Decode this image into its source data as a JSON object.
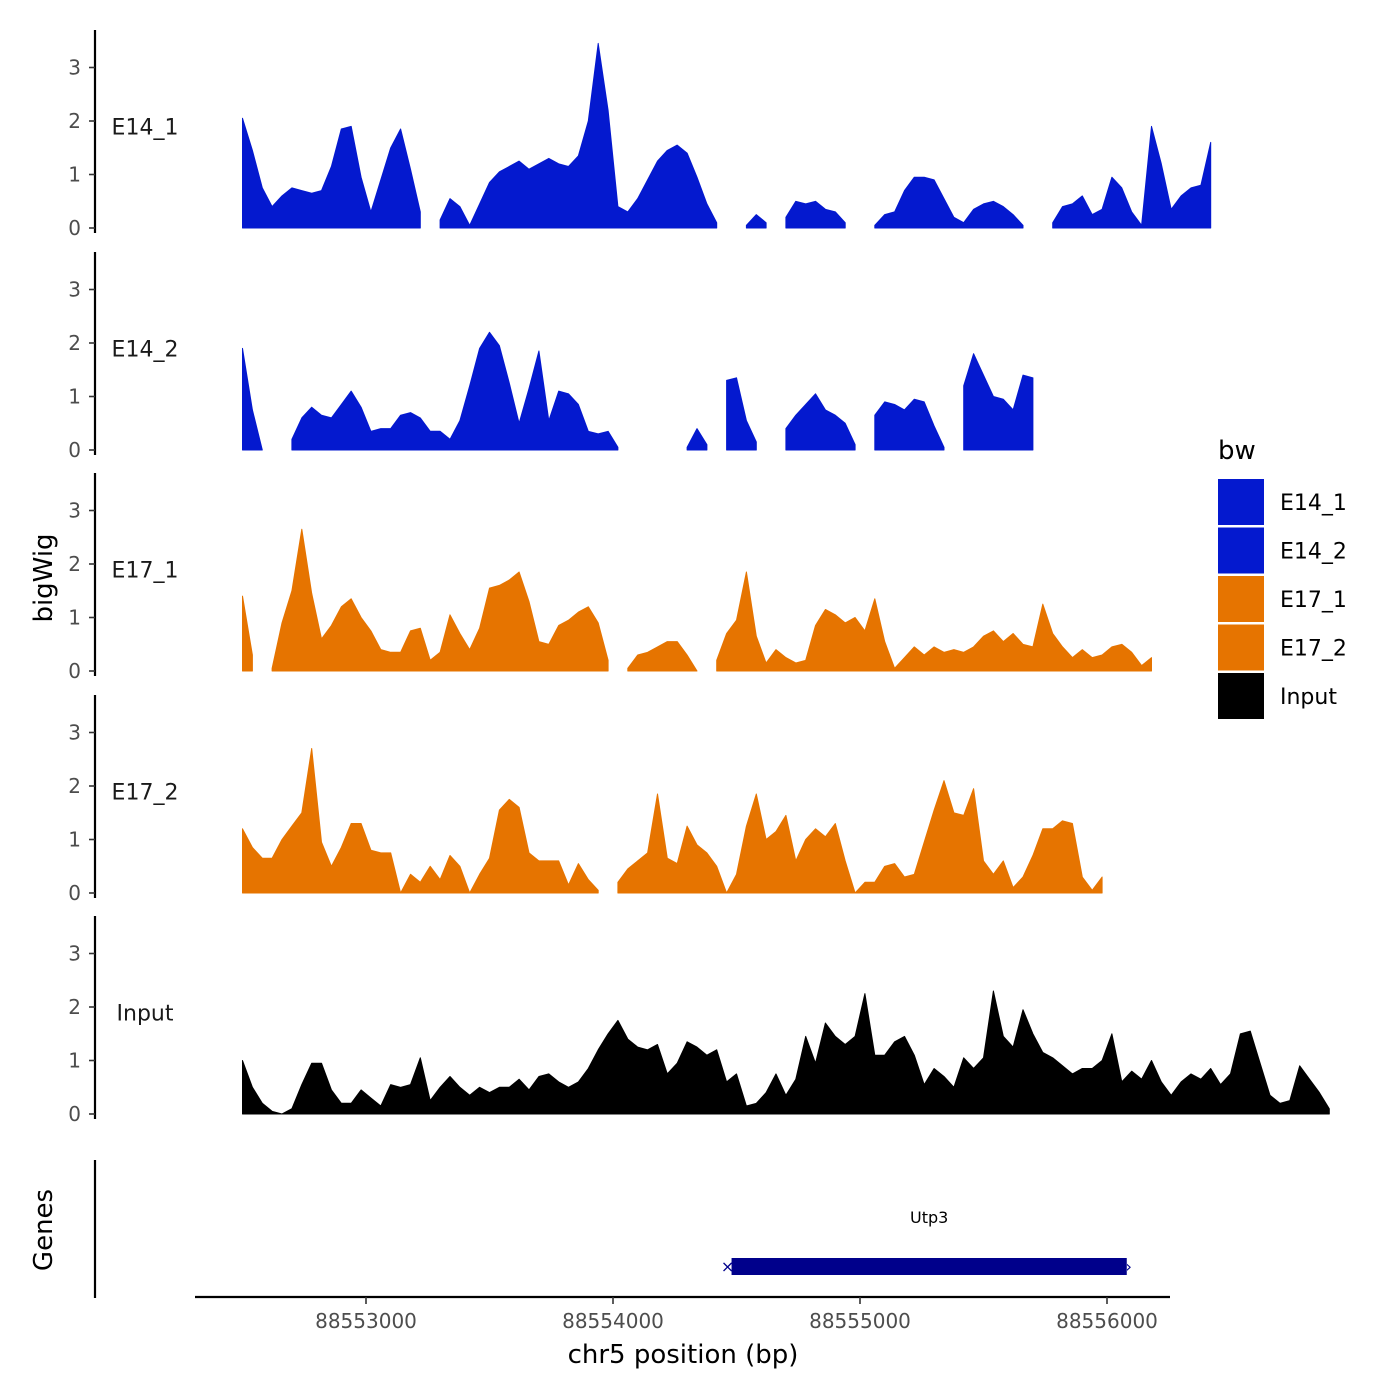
{
  "chart_data": {
    "type": "area",
    "ylabel": "bigWig",
    "xlabel": "chr5 position (bp)",
    "xlim": [
      88552300,
      88556200
    ],
    "ylim": [
      0,
      3.6
    ],
    "yticks": [
      0,
      1,
      2,
      3
    ],
    "xticks": [
      88553000,
      88554000,
      88555000,
      88556000
    ],
    "xtick_labels": [
      "88553000",
      "88554000",
      "88555000",
      "88556000"
    ],
    "legend": {
      "title": "bw",
      "placement": "right",
      "entries": [
        {
          "label": "E14_1",
          "color": "#0419CF"
        },
        {
          "label": "E14_2",
          "color": "#0419CF"
        },
        {
          "label": "E17_1",
          "color": "#E67400"
        },
        {
          "label": "E17_2",
          "color": "#E67400"
        },
        {
          "label": "Input",
          "color": "#000000"
        }
      ]
    },
    "series": [
      {
        "name": "E14_1",
        "color": "#0419CF",
        "x_start": 88552500,
        "x_step": 40,
        "values": [
          2.05,
          1.45,
          0.75,
          0.4,
          0.6,
          0.75,
          0.7,
          0.65,
          0.7,
          1.15,
          1.85,
          1.9,
          0.95,
          0.3,
          0.9,
          1.5,
          1.85,
          1.1,
          0.3,
          null,
          0.15,
          0.55,
          0.4,
          0.05,
          0.45,
          0.85,
          1.05,
          1.15,
          1.25,
          1.1,
          1.2,
          1.3,
          1.2,
          1.15,
          1.35,
          2.0,
          3.45,
          2.2,
          0.4,
          0.3,
          0.55,
          0.9,
          1.25,
          1.45,
          1.55,
          1.4,
          0.95,
          0.45,
          0.1,
          null,
          null,
          0.05,
          0.25,
          0.1,
          null,
          0.2,
          0.5,
          0.45,
          0.5,
          0.35,
          0.3,
          0.1,
          null,
          null,
          0.05,
          0.25,
          0.3,
          0.7,
          0.95,
          0.95,
          0.9,
          0.55,
          0.2,
          0.1,
          0.35,
          0.45,
          0.5,
          0.4,
          0.25,
          0.05,
          null,
          null,
          0.1,
          0.4,
          0.45,
          0.6,
          0.25,
          0.35,
          0.95,
          0.75,
          0.3,
          0.05,
          1.9,
          1.2,
          0.35,
          0.6,
          0.75,
          0.8,
          1.6
        ]
      },
      {
        "name": "E14_2",
        "color": "#0419CF",
        "x_start": 88552500,
        "x_step": 40,
        "values": [
          1.9,
          0.75,
          0.0,
          null,
          null,
          0.2,
          0.6,
          0.8,
          0.65,
          0.6,
          0.85,
          1.1,
          0.8,
          0.35,
          0.4,
          0.4,
          0.65,
          0.7,
          0.6,
          0.35,
          0.35,
          0.2,
          0.55,
          1.2,
          1.9,
          2.2,
          1.95,
          1.25,
          0.5,
          1.15,
          1.85,
          0.55,
          1.1,
          1.05,
          0.85,
          0.35,
          0.3,
          0.35,
          0.05,
          null,
          null,
          null,
          null,
          null,
          null,
          0.05,
          0.4,
          0.1,
          null,
          1.3,
          1.35,
          0.55,
          0.15,
          null,
          null,
          0.4,
          0.65,
          0.85,
          1.05,
          0.75,
          0.65,
          0.5,
          0.1,
          null,
          0.65,
          0.9,
          0.85,
          0.75,
          0.95,
          0.9,
          0.45,
          0.05,
          null,
          1.2,
          1.8,
          1.4,
          1.0,
          0.95,
          0.75,
          1.4,
          1.35
        ]
      },
      {
        "name": "E17_1",
        "color": "#E67400",
        "x_start": 88552500,
        "x_step": 40,
        "values": [
          1.4,
          0.3,
          null,
          0.05,
          0.9,
          1.5,
          2.65,
          1.45,
          0.6,
          0.85,
          1.2,
          1.35,
          1.0,
          0.75,
          0.4,
          0.35,
          0.35,
          0.75,
          0.8,
          0.2,
          0.35,
          1.05,
          0.7,
          0.4,
          0.8,
          1.55,
          1.6,
          1.7,
          1.85,
          1.3,
          0.55,
          0.5,
          0.85,
          0.95,
          1.1,
          1.2,
          0.9,
          0.2,
          null,
          0.05,
          0.3,
          0.35,
          0.45,
          0.55,
          0.55,
          0.3,
          0.0,
          null,
          0.2,
          0.7,
          0.95,
          1.85,
          0.65,
          0.15,
          0.4,
          0.25,
          0.15,
          0.2,
          0.85,
          1.15,
          1.05,
          0.9,
          1.0,
          0.75,
          1.35,
          0.55,
          0.05,
          0.25,
          0.45,
          0.3,
          0.45,
          0.35,
          0.4,
          0.35,
          0.45,
          0.65,
          0.75,
          0.55,
          0.7,
          0.5,
          0.45,
          1.25,
          0.7,
          0.45,
          0.25,
          0.4,
          0.25,
          0.3,
          0.45,
          0.5,
          0.35,
          0.1,
          0.25
        ]
      },
      {
        "name": "E17_2",
        "color": "#E67400",
        "x_start": 88552500,
        "x_step": 40,
        "values": [
          1.2,
          0.85,
          0.65,
          0.65,
          1.0,
          1.25,
          1.5,
          2.7,
          0.95,
          0.5,
          0.85,
          1.3,
          1.3,
          0.8,
          0.75,
          0.75,
          0.0,
          0.35,
          0.2,
          0.5,
          0.25,
          0.7,
          0.5,
          0.0,
          0.35,
          0.65,
          1.55,
          1.75,
          1.6,
          0.75,
          0.6,
          0.6,
          0.6,
          0.15,
          0.55,
          0.25,
          0.05,
          null,
          0.2,
          0.45,
          0.6,
          0.75,
          1.85,
          0.65,
          0.55,
          1.25,
          0.9,
          0.75,
          0.5,
          0.0,
          0.35,
          1.25,
          1.85,
          1.0,
          1.15,
          1.45,
          0.6,
          1.0,
          1.2,
          1.05,
          1.3,
          0.6,
          0.0,
          0.2,
          0.2,
          0.5,
          0.55,
          0.3,
          0.35,
          0.95,
          1.55,
          2.1,
          1.5,
          1.45,
          1.95,
          0.6,
          0.35,
          0.6,
          0.1,
          0.3,
          0.7,
          1.2,
          1.2,
          1.35,
          1.3,
          0.3,
          0.05,
          0.3
        ]
      },
      {
        "name": "Input",
        "color": "#000000",
        "x_start": 88552500,
        "x_step": 40,
        "values": [
          1.0,
          0.5,
          0.2,
          0.05,
          0.0,
          0.1,
          0.55,
          0.95,
          0.95,
          0.45,
          0.2,
          0.2,
          0.45,
          0.3,
          0.15,
          0.55,
          0.5,
          0.55,
          1.05,
          0.25,
          0.5,
          0.7,
          0.5,
          0.35,
          0.5,
          0.4,
          0.5,
          0.5,
          0.65,
          0.45,
          0.7,
          0.75,
          0.6,
          0.5,
          0.6,
          0.85,
          1.2,
          1.5,
          1.75,
          1.4,
          1.25,
          1.2,
          1.3,
          0.75,
          0.95,
          1.35,
          1.25,
          1.1,
          1.2,
          0.6,
          0.75,
          0.15,
          0.2,
          0.4,
          0.75,
          0.35,
          0.65,
          1.45,
          0.95,
          1.7,
          1.45,
          1.3,
          1.45,
          2.25,
          1.1,
          1.1,
          1.35,
          1.45,
          1.1,
          0.55,
          0.85,
          0.7,
          0.5,
          1.05,
          0.85,
          1.05,
          2.3,
          1.45,
          1.25,
          1.95,
          1.5,
          1.15,
          1.05,
          0.9,
          0.75,
          0.85,
          0.85,
          1.0,
          1.5,
          0.6,
          0.8,
          0.65,
          1.0,
          0.6,
          0.35,
          0.6,
          0.75,
          0.65,
          0.85,
          0.55,
          0.75,
          1.5,
          1.55,
          0.95,
          0.35,
          0.2,
          0.25,
          0.9,
          0.65,
          0.4,
          0.1
        ]
      }
    ],
    "genes_track": {
      "ylabel": "Genes",
      "genes": [
        {
          "name": "Utp3",
          "start": 88554480,
          "end": 88556080
        }
      ]
    }
  }
}
